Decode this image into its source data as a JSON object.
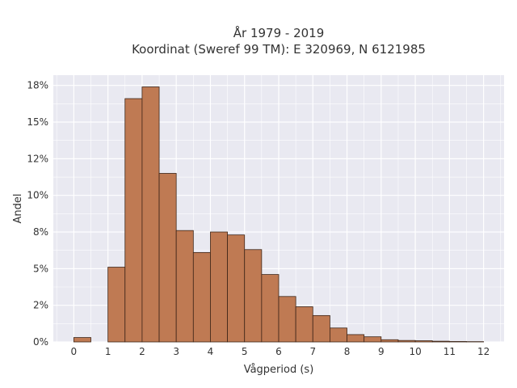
{
  "chart_data": {
    "type": "bar",
    "title_line1": "År 1979 - 2019",
    "title_line2": "Koordinat (Sweref 99 TM): E 320969, N 6121985",
    "xlabel": "Vågperiod (s)",
    "ylabel": "Andel",
    "xlim": [
      -0.6,
      12.6
    ],
    "ylim": [
      0,
      18.2
    ],
    "x_ticks": [
      0,
      1,
      2,
      3,
      4,
      5,
      6,
      7,
      8,
      9,
      10,
      11,
      12
    ],
    "y_ticks": [
      {
        "value": 0,
        "label": "0%"
      },
      {
        "value": 2.5,
        "label": "2%"
      },
      {
        "value": 5,
        "label": "5%"
      },
      {
        "value": 7.5,
        "label": "8%"
      },
      {
        "value": 10,
        "label": "10%"
      },
      {
        "value": 12.5,
        "label": "12%"
      },
      {
        "value": 15,
        "label": "15%"
      },
      {
        "value": 17.5,
        "label": "18%"
      }
    ],
    "bin_width": 0.5,
    "bins": [
      {
        "start": 0.0,
        "value": 0.3
      },
      {
        "start": 0.5,
        "value": 0.0
      },
      {
        "start": 1.0,
        "value": 5.1
      },
      {
        "start": 1.5,
        "value": 16.6
      },
      {
        "start": 2.0,
        "value": 17.4
      },
      {
        "start": 2.5,
        "value": 11.5
      },
      {
        "start": 3.0,
        "value": 7.6
      },
      {
        "start": 3.5,
        "value": 6.1
      },
      {
        "start": 4.0,
        "value": 7.5
      },
      {
        "start": 4.5,
        "value": 7.3
      },
      {
        "start": 5.0,
        "value": 6.3
      },
      {
        "start": 5.5,
        "value": 4.6
      },
      {
        "start": 6.0,
        "value": 3.1
      },
      {
        "start": 6.5,
        "value": 2.4
      },
      {
        "start": 7.0,
        "value": 1.8
      },
      {
        "start": 7.5,
        "value": 0.95
      },
      {
        "start": 8.0,
        "value": 0.5
      },
      {
        "start": 8.5,
        "value": 0.35
      },
      {
        "start": 9.0,
        "value": 0.15
      },
      {
        "start": 9.5,
        "value": 0.1
      },
      {
        "start": 10.0,
        "value": 0.08
      },
      {
        "start": 10.5,
        "value": 0.05
      },
      {
        "start": 11.0,
        "value": 0.03
      },
      {
        "start": 11.5,
        "value": 0.02
      }
    ],
    "grid": true,
    "colors": {
      "bar_fill": "#bf7a53",
      "bar_stroke": "#3d2518",
      "plot_bg": "#e9e9f1",
      "grid": "#ffffff"
    }
  }
}
